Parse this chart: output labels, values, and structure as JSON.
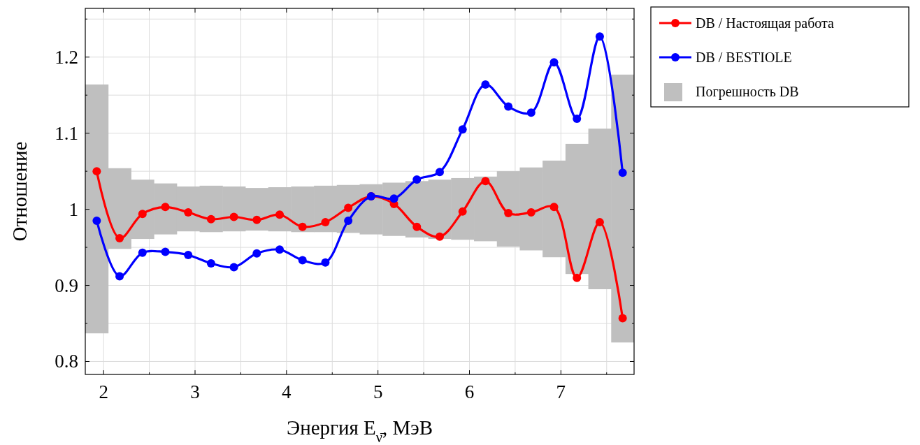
{
  "chart_data": {
    "type": "line",
    "xlabel": "Энергия E$_{ν̄}$, МэВ",
    "ylabel": "Отношение",
    "x": [
      1.925,
      2.175,
      2.425,
      2.675,
      2.925,
      3.175,
      3.425,
      3.675,
      3.925,
      4.175,
      4.425,
      4.675,
      4.925,
      5.175,
      5.425,
      5.675,
      5.925,
      6.175,
      6.425,
      6.675,
      6.925,
      7.175,
      7.425,
      7.675
    ],
    "series": [
      {
        "name": "DB / Настоящая работа",
        "color": "#ff0000",
        "values": [
          1.05,
          0.962,
          0.994,
          1.003,
          0.996,
          0.987,
          0.99,
          0.986,
          0.993,
          0.977,
          0.983,
          1.002,
          1.017,
          1.007,
          0.977,
          0.964,
          0.997,
          1.037,
          0.995,
          0.996,
          1.003,
          0.91,
          0.983,
          0.857
        ]
      },
      {
        "name": "DB / BESTIOLE",
        "color": "#0000ff",
        "values": [
          0.985,
          0.912,
          0.943,
          0.944,
          0.94,
          0.929,
          0.924,
          0.942,
          0.947,
          0.933,
          0.93,
          0.985,
          1.017,
          1.014,
          1.039,
          1.049,
          1.105,
          1.164,
          1.135,
          1.127,
          1.193,
          1.119,
          1.227,
          1.048
        ]
      },
      {
        "name": "Погрешность DB",
        "type": "bar",
        "color": "#bfbfbf",
        "base": [
          0.837,
          0.948,
          0.961,
          0.967,
          0.971,
          0.97,
          0.971,
          0.972,
          0.971,
          0.97,
          0.97,
          0.969,
          0.967,
          0.965,
          0.963,
          0.961,
          0.96,
          0.958,
          0.951,
          0.946,
          0.937,
          0.915,
          0.895,
          0.825
        ],
        "values": [
          0.327,
          0.106,
          0.078,
          0.067,
          0.059,
          0.061,
          0.059,
          0.056,
          0.058,
          0.06,
          0.061,
          0.063,
          0.066,
          0.07,
          0.074,
          0.078,
          0.081,
          0.085,
          0.099,
          0.109,
          0.127,
          0.171,
          0.211,
          0.352
        ]
      }
    ],
    "xlim": [
      1.8,
      7.8
    ],
    "ylim": [
      0.783,
      1.264
    ],
    "xticks": [
      2,
      {
        "value": 2.5,
        "label": null
      },
      3,
      {
        "value": 3.5,
        "label": null
      },
      4,
      {
        "value": 4.5,
        "label": null
      },
      5,
      {
        "value": 5.5,
        "label": null
      },
      6,
      {
        "value": 6.5,
        "label": null
      },
      7,
      {
        "value": 7.5,
        "label": null
      }
    ],
    "yticks": [
      0.8,
      {
        "value": 0.85,
        "label": null
      },
      0.9,
      {
        "value": 0.95,
        "label": null
      },
      {
        "value": 1,
        "label": "1"
      },
      {
        "value": 1.05,
        "label": null
      },
      1.1,
      {
        "value": 1.15,
        "label": null
      },
      1.2,
      {
        "value": 1.25,
        "label": null
      }
    ],
    "grid": true,
    "legend": "top right",
    "marker": "circle",
    "line_style": "solid"
  }
}
